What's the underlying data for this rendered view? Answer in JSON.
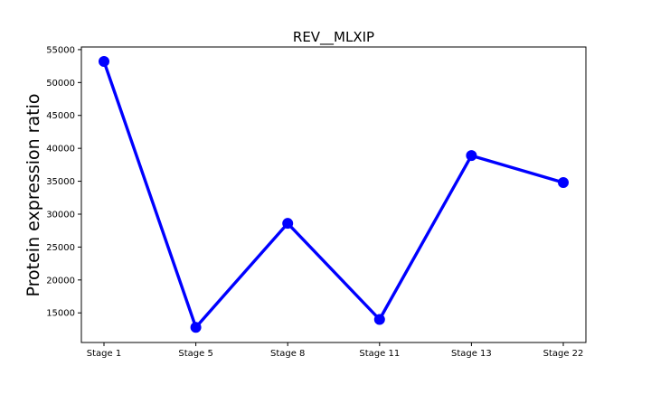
{
  "chart_data": {
    "type": "line",
    "title": "REV__MLXIP",
    "xlabel": "",
    "ylabel": "Protein expression ratio",
    "categories": [
      "Stage 1",
      "Stage 5",
      "Stage 8",
      "Stage 11",
      "Stage 13",
      "Stage 22"
    ],
    "series": [
      {
        "values": [
          53200,
          12800,
          28600,
          14000,
          38900,
          34800
        ]
      }
    ],
    "ylim": [
      10500,
      55400
    ],
    "yticks": [
      15000,
      20000,
      25000,
      30000,
      35000,
      40000,
      45000,
      50000,
      55000
    ],
    "ytick_labels": [
      "15000",
      "20000",
      "25000",
      "30000",
      "35000",
      "40000",
      "45000",
      "50000",
      "55000"
    ],
    "grid": false,
    "legend": "none",
    "colors": {
      "line": "#0000ff",
      "marker": "#0000ff",
      "axes": "#000000"
    }
  }
}
